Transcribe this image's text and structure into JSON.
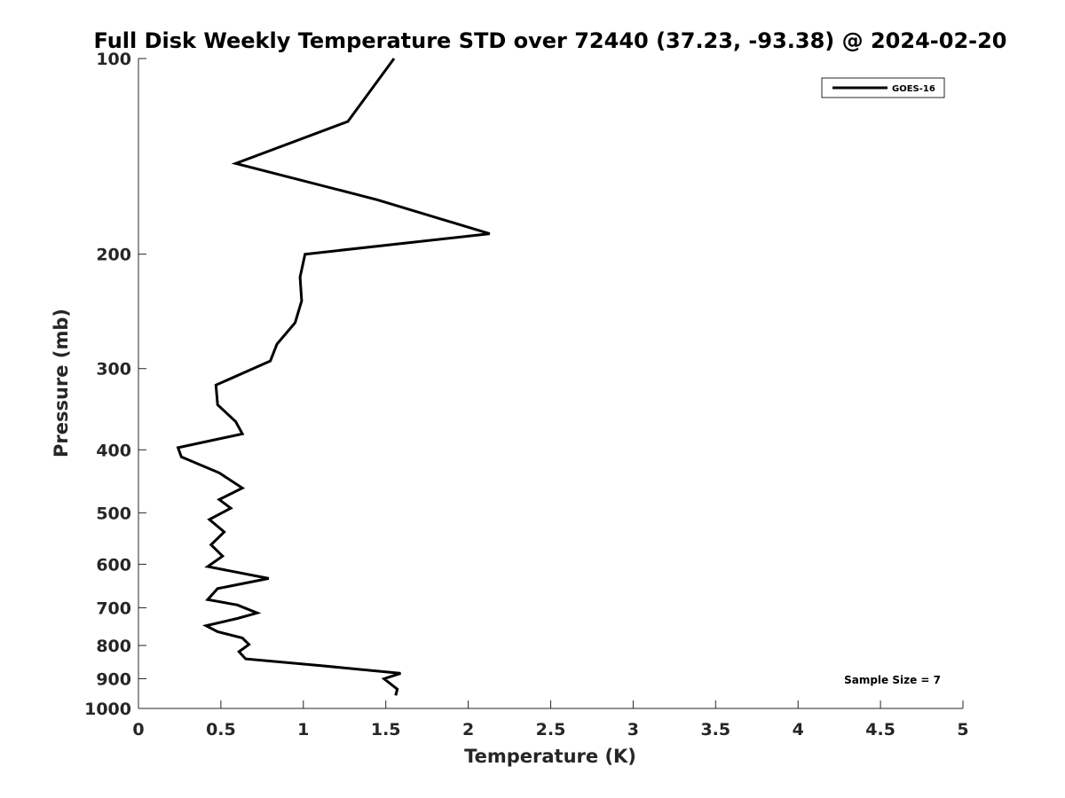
{
  "chart_data": {
    "type": "line",
    "title": "Full Disk Weekly Temperature STD over 72440 (37.23, -93.38) @ 2024-02-20",
    "xlabel": "Temperature (K)",
    "ylabel": "Pressure (mb)",
    "xlim": [
      0,
      5
    ],
    "ylim": [
      100,
      1000
    ],
    "y_scale": "log",
    "y_reversed": true,
    "x_ticks": [
      "0",
      "0.5",
      "1",
      "1.5",
      "2",
      "2.5",
      "3",
      "3.5",
      "4",
      "4.5",
      "5"
    ],
    "y_ticks": [
      "100",
      "200",
      "300",
      "400",
      "500",
      "600",
      "700",
      "800",
      "900",
      "1000"
    ],
    "grid": false,
    "legend_position": "top-right",
    "series": [
      {
        "name": "GOES-16",
        "color": "#000000",
        "x": [
          1.55,
          1.27,
          0.59,
          1.45,
          2.13,
          1.01,
          0.98,
          0.99,
          0.95,
          0.84,
          0.8,
          0.47,
          0.48,
          0.59,
          0.63,
          0.24,
          0.26,
          0.49,
          0.63,
          0.49,
          0.56,
          0.43,
          0.52,
          0.44,
          0.51,
          0.42,
          0.79,
          0.48,
          0.42,
          0.6,
          0.72,
          0.6,
          0.41,
          0.48,
          0.63,
          0.67,
          0.61,
          0.65,
          1.1,
          1.59,
          1.49,
          1.57,
          1.56
        ],
        "y": [
          100,
          125,
          145,
          165,
          186,
          200,
          217,
          236,
          255,
          275,
          292,
          318,
          341,
          362,
          378,
          397,
          410,
          434,
          458,
          477,
          492,
          512,
          535,
          560,
          583,
          605,
          631,
          654,
          680,
          693,
          713,
          727,
          746,
          762,
          779,
          797,
          818,
          839,
          859,
          883,
          900,
          934,
          955
        ]
      }
    ],
    "annotation": "Sample Size = 7"
  }
}
